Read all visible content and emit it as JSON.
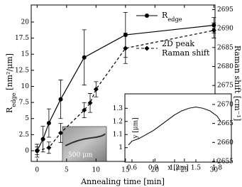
{
  "chart_data": [
    {
      "type": "line",
      "x_label": "Annealing time [min]",
      "y_label": "Redge [nm²/μm]",
      "y2_label": "Raman shift [cm⁻¹]",
      "xlim": [
        -1,
        30.2
      ],
      "xticks": [
        0,
        5,
        10,
        15,
        20,
        25,
        30
      ],
      "ylim": [
        -1.66,
        22.65
      ],
      "yticks": [
        0,
        2.5,
        5,
        7.5,
        10,
        12.5,
        15,
        17.5,
        20
      ],
      "y2lim": [
        2655,
        2696.2
      ],
      "y2ticks": [
        2655,
        2660,
        2665,
        2670,
        2675,
        2680,
        2685,
        2690,
        2695
      ],
      "image_label": "500 μm",
      "series": [
        {
          "name": "Redge",
          "color": "#000000",
          "marker": "circle",
          "dash": false,
          "x": [
            0,
            1,
            2,
            4,
            8,
            15,
            30
          ],
          "values": [
            0,
            1.8,
            4.3,
            8,
            14.5,
            18,
            19.5
          ],
          "errors": [
            1,
            2,
            2.2,
            3,
            4.3,
            3.5,
            1.2
          ]
        },
        {
          "name": "2D peak\nRaman shift",
          "color": "#000000",
          "marker": "diamond",
          "dash": true,
          "axis": "y2",
          "x": [
            0,
            2,
            4,
            8,
            9,
            10,
            15,
            30
          ],
          "values": [
            2657.8,
            2658.6,
            2662.5,
            2668.5,
            2670.4,
            2674,
            2684.8,
            2689.5
          ],
          "errors": [
            1,
            1.5,
            2.5,
            2,
            2.5,
            2,
            4,
            2
          ]
        }
      ]
    },
    {
      "type": "line",
      "x_label": "x [μm]",
      "y_label": "y [μm]",
      "xlim": [
        0.5,
        2.0
      ],
      "xticks": [
        0.6,
        0.9,
        1.2,
        1.5,
        1.8
      ],
      "ylim": [
        0.89,
        1.41
      ],
      "yticks": [
        1,
        1.1,
        1.2,
        1.3
      ],
      "series": [
        {
          "color": "#000000",
          "x": [
            0.55,
            0.6,
            0.7,
            0.8,
            0.9,
            1.0,
            1.1,
            1.2,
            1.3,
            1.4,
            1.5,
            1.6,
            1.7,
            1.8,
            1.85
          ],
          "values": [
            1.02,
            1.05,
            1.07,
            1.1,
            1.13,
            1.17,
            1.21,
            1.25,
            1.28,
            1.3,
            1.31,
            1.3,
            1.28,
            1.24,
            1.2
          ]
        }
      ]
    }
  ]
}
